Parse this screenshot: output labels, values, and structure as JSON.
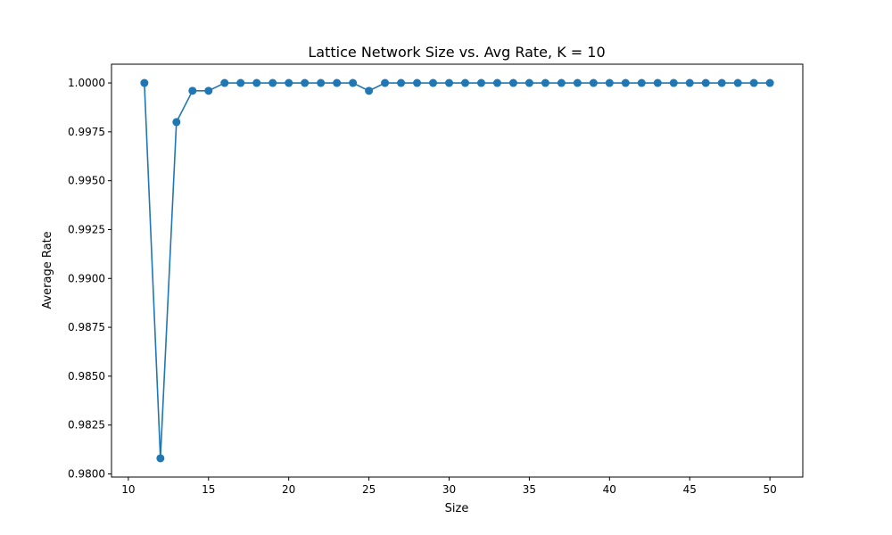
{
  "chart_data": {
    "type": "line",
    "title": "Lattice Network Size vs. Avg Rate, K = 10",
    "xlabel": "Size",
    "ylabel": "Average Rate",
    "xlim": [
      8.95,
      52.05
    ],
    "ylim": [
      0.97984,
      1.00096
    ],
    "xticks": [
      10,
      15,
      20,
      25,
      30,
      35,
      40,
      45,
      50
    ],
    "yticks": [
      0.98,
      0.9825,
      0.985,
      0.9875,
      0.99,
      0.9925,
      0.995,
      0.9975,
      1.0
    ],
    "ytick_labels": [
      "0.9800",
      "0.9825",
      "0.9850",
      "0.9875",
      "0.9900",
      "0.9925",
      "0.9950",
      "0.9975",
      "1.0000"
    ],
    "grid": false,
    "marker": "circle",
    "color": "#1f77b4",
    "series": [
      {
        "x": [
          11,
          12,
          13,
          14,
          15,
          16,
          17,
          18,
          19,
          20,
          21,
          22,
          23,
          24,
          25,
          26,
          27,
          28,
          29,
          30,
          31,
          32,
          33,
          34,
          35,
          36,
          37,
          38,
          39,
          40,
          41,
          42,
          43,
          44,
          45,
          46,
          47,
          48,
          49,
          50
        ],
        "values": [
          1.0,
          0.9808,
          0.998,
          0.9996,
          0.9996,
          1.0,
          1.0,
          1.0,
          1.0,
          1.0,
          1.0,
          1.0,
          1.0,
          1.0,
          0.9996,
          1.0,
          1.0,
          1.0,
          1.0,
          1.0,
          1.0,
          1.0,
          1.0,
          1.0,
          1.0,
          1.0,
          1.0,
          1.0,
          1.0,
          1.0,
          1.0,
          1.0,
          1.0,
          1.0,
          1.0,
          1.0,
          1.0,
          1.0,
          1.0,
          1.0
        ]
      }
    ]
  }
}
